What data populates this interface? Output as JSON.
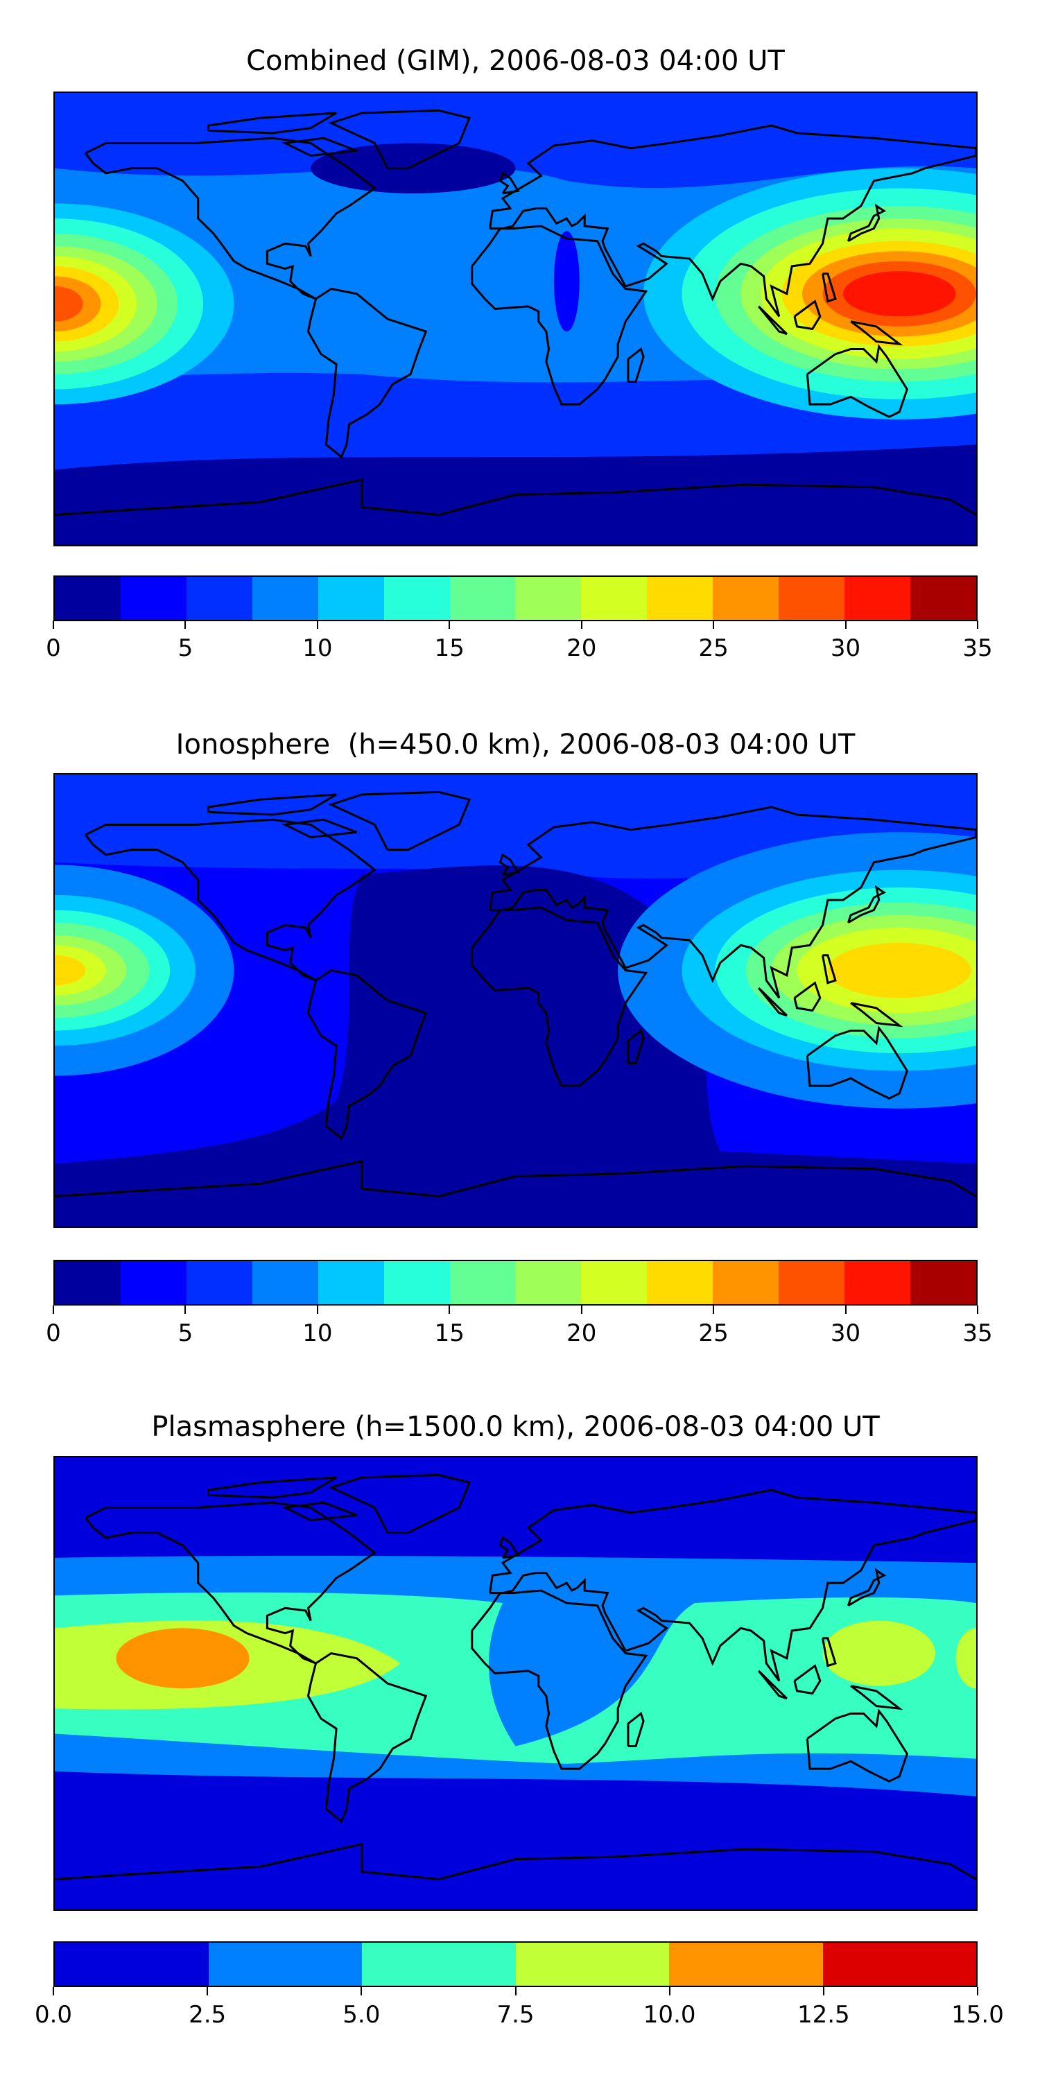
{
  "chart_data": [
    {
      "type": "heatmap",
      "title": "Combined (GIM), 2006-08-03 04:00 UT",
      "projection": "equirectangular, lon -180..180, lat -90..90",
      "colorbar": {
        "ticks": [
          "0",
          "5",
          "10",
          "15",
          "20",
          "25",
          "30",
          "35"
        ],
        "range": [
          0,
          35
        ],
        "levels": [
          0,
          2.5,
          5,
          7.5,
          10,
          12.5,
          15,
          17.5,
          20,
          22.5,
          25,
          27.5,
          30,
          32.5,
          35
        ],
        "colors": [
          "#00009f",
          "#0000ff",
          "#0030ff",
          "#0080ff",
          "#00c8ff",
          "#26ffd9",
          "#63ff94",
          "#a0ff57",
          "#d4ff23",
          "#ffdb00",
          "#ff9400",
          "#ff5200",
          "#ff1400",
          "#a80000"
        ]
      },
      "features": "TEC maxima (~30-32.5) over SE Asia / western Pacific near equator and central Pacific at dateline; minima (0-2.5) in polar regions and N Atlantic"
    },
    {
      "type": "heatmap",
      "title": "Ionosphere  (h=450.0 km), 2006-08-03 04:00 UT",
      "projection": "equirectangular, lon -180..180, lat -90..90",
      "colorbar": {
        "ticks": [
          "0",
          "5",
          "10",
          "15",
          "20",
          "25",
          "30",
          "35"
        ],
        "range": [
          0,
          35
        ],
        "levels": [
          0,
          2.5,
          5,
          7.5,
          10,
          12.5,
          15,
          17.5,
          20,
          22.5,
          25,
          27.5,
          30,
          32.5,
          35
        ],
        "colors": [
          "#00009f",
          "#0000ff",
          "#0030ff",
          "#0080ff",
          "#00c8ff",
          "#26ffd9",
          "#63ff94",
          "#a0ff57",
          "#d4ff23",
          "#ffdb00",
          "#ff9400",
          "#ff5200",
          "#ff1400",
          "#a80000"
        ]
      },
      "features": "maxima (~22.5-25) over SE Asia / western Pacific and at dateline; broad minimum (0-2.5) over Atlantic, South America and Africa"
    },
    {
      "type": "heatmap",
      "title": "Plasmasphere (h=1500.0 km), 2006-08-03 04:00 UT",
      "projection": "equirectangular, lon -180..180, lat -90..90",
      "colorbar": {
        "ticks": [
          "0.0",
          "2.5",
          "5.0",
          "7.5",
          "10.0",
          "12.5",
          "15.0"
        ],
        "range": [
          0,
          15
        ],
        "levels": [
          0,
          2.5,
          5,
          7.5,
          10,
          12.5,
          15
        ],
        "colors": [
          "#0000dd",
          "#0080ff",
          "#36ffc1",
          "#c1ff36",
          "#ff9400",
          "#dd0000"
        ]
      },
      "features": "maximum (10-12.5) over central/eastern Pacific; 7.5-10 band in low latitudes Pacific and western Pacific/Asia; low values (0-2.5) poleward of ~45 deg"
    }
  ]
}
